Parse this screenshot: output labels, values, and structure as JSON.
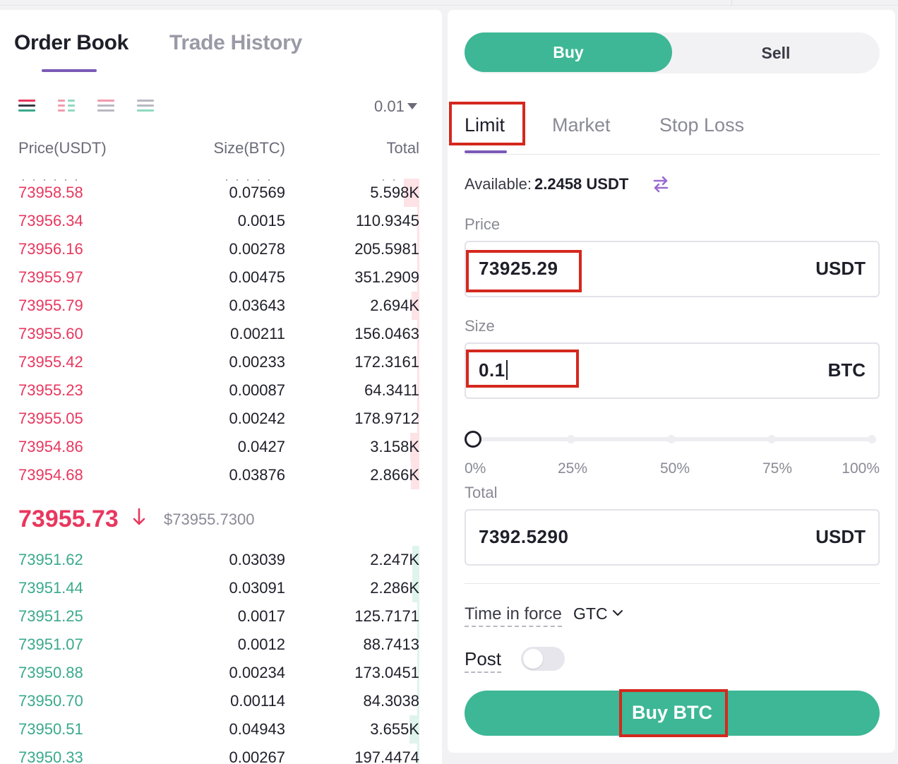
{
  "colors": {
    "buy_green": "#3db795",
    "ask_red": "#e8375e",
    "bid_green": "#3aa98c",
    "accent_purple": "#7a5ab6",
    "highlight_red": "#d4281e"
  },
  "order_book": {
    "tabs": {
      "order_book": "Order Book",
      "trade_history": "Trade History"
    },
    "view_icons": [
      "both-sides-icon",
      "split-columns-icon",
      "asks-only-icon",
      "bids-only-icon"
    ],
    "precision": "0.01",
    "columns": {
      "price": "Price(USDT)",
      "size": "Size(BTC)",
      "total": "Total"
    },
    "asks": [
      {
        "price": "73958.58",
        "size": "0.07569",
        "total": "5.598K",
        "depth": 0.18
      },
      {
        "price": "73956.34",
        "size": "0.0015",
        "total": "110.9345",
        "depth": 0.01
      },
      {
        "price": "73956.16",
        "size": "0.00278",
        "total": "205.5981",
        "depth": 0.01
      },
      {
        "price": "73955.97",
        "size": "0.00475",
        "total": "351.2909",
        "depth": 0.01
      },
      {
        "price": "73955.79",
        "size": "0.03643",
        "total": "2.694K",
        "depth": 0.09
      },
      {
        "price": "73955.60",
        "size": "0.00211",
        "total": "156.0463",
        "depth": 0.01
      },
      {
        "price": "73955.42",
        "size": "0.00233",
        "total": "172.3161",
        "depth": 0.01
      },
      {
        "price": "73955.23",
        "size": "0.00087",
        "total": "64.3411",
        "depth": 0.01
      },
      {
        "price": "73955.05",
        "size": "0.00242",
        "total": "178.9712",
        "depth": 0.01
      },
      {
        "price": "73954.86",
        "size": "0.0427",
        "total": "3.158K",
        "depth": 0.11
      },
      {
        "price": "73954.68",
        "size": "0.03876",
        "total": "2.866K",
        "depth": 0.1
      }
    ],
    "mid": {
      "price": "73955.73",
      "usd": "$73955.7300"
    },
    "bids": [
      {
        "price": "73951.62",
        "size": "0.03039",
        "total": "2.247K",
        "depth": 0.08
      },
      {
        "price": "73951.44",
        "size": "0.03091",
        "total": "2.286K",
        "depth": 0.08
      },
      {
        "price": "73951.25",
        "size": "0.0017",
        "total": "125.7171",
        "depth": 0.01
      },
      {
        "price": "73951.07",
        "size": "0.0012",
        "total": "88.7413",
        "depth": 0.01
      },
      {
        "price": "73950.88",
        "size": "0.00234",
        "total": "173.0451",
        "depth": 0.01
      },
      {
        "price": "73950.70",
        "size": "0.00114",
        "total": "84.3038",
        "depth": 0.01
      },
      {
        "price": "73950.51",
        "size": "0.04943",
        "total": "3.655K",
        "depth": 0.12
      },
      {
        "price": "73950.33",
        "size": "0.00267",
        "total": "197.4474",
        "depth": 0.01
      }
    ]
  },
  "trade_form": {
    "side_toggle": {
      "buy": "Buy",
      "sell": "Sell"
    },
    "order_types": {
      "limit": "Limit",
      "market": "Market",
      "stop_loss": "Stop Loss"
    },
    "available": {
      "label": "Available:",
      "value": "2.2458 USDT"
    },
    "price": {
      "label": "Price",
      "value": "73925.29",
      "unit": "USDT"
    },
    "size": {
      "label": "Size",
      "value": "0.1",
      "unit": "BTC"
    },
    "slider": {
      "percent": 0,
      "labels": [
        "0%",
        "25%",
        "50%",
        "75%",
        "100%"
      ]
    },
    "total": {
      "label": "Total",
      "value": "7392.5290",
      "unit": "USDT"
    },
    "time_in_force": {
      "label": "Time in force",
      "value": "GTC"
    },
    "post": {
      "label": "Post",
      "enabled": false
    },
    "submit_label": "Buy BTC"
  }
}
